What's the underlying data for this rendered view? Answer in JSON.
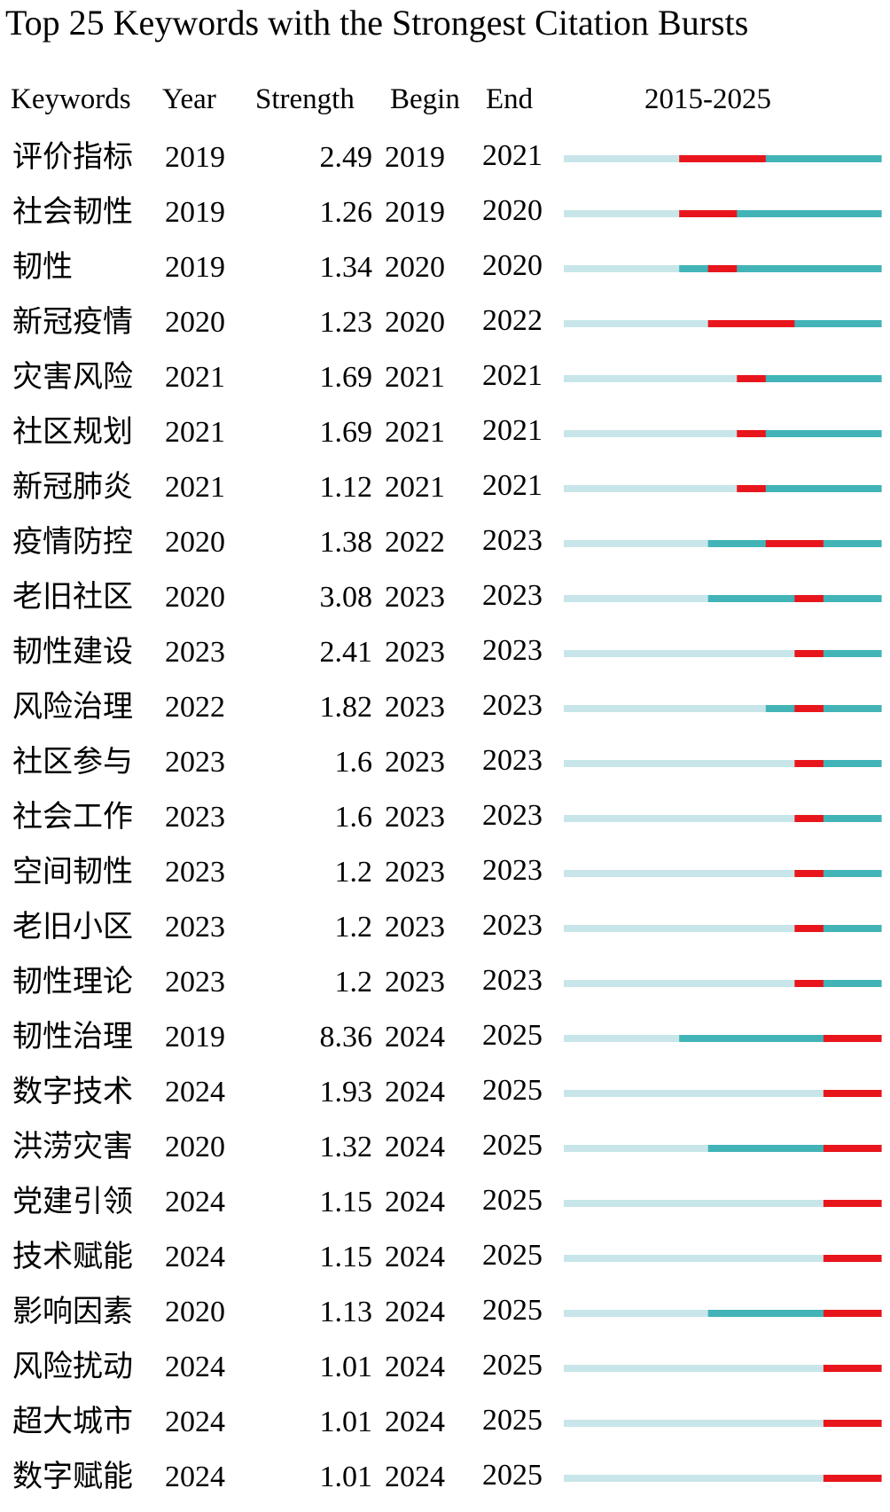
{
  "title": "Top 25 Keywords with the Strongest Citation Bursts",
  "headers": {
    "keywords": "Keywords",
    "year": "Year",
    "strength": "Strength",
    "begin": "Begin",
    "end": "End",
    "range": "2015-2025"
  },
  "colors": {
    "before": "#c8e6e9",
    "active": "#42b4b8",
    "burst": "#e8161c"
  },
  "chart_data": {
    "type": "table",
    "title": "Top 25 Keywords with the Strongest Citation Bursts",
    "range": [
      2015,
      2025
    ],
    "rows": [
      {
        "keyword": "评价指标",
        "year": "2019",
        "strength": "2.49",
        "begin": "2019",
        "end": "2021"
      },
      {
        "keyword": "社会韧性",
        "year": "2019",
        "strength": "1.26",
        "begin": "2019",
        "end": "2020"
      },
      {
        "keyword": "韧性",
        "year": "2019",
        "strength": "1.34",
        "begin": "2020",
        "end": "2020"
      },
      {
        "keyword": "新冠疫情",
        "year": "2020",
        "strength": "1.23",
        "begin": "2020",
        "end": "2022"
      },
      {
        "keyword": "灾害风险",
        "year": "2021",
        "strength": "1.69",
        "begin": "2021",
        "end": "2021"
      },
      {
        "keyword": "社区规划",
        "year": "2021",
        "strength": "1.69",
        "begin": "2021",
        "end": "2021"
      },
      {
        "keyword": "新冠肺炎",
        "year": "2021",
        "strength": "1.12",
        "begin": "2021",
        "end": "2021"
      },
      {
        "keyword": "疫情防控",
        "year": "2020",
        "strength": "1.38",
        "begin": "2022",
        "end": "2023"
      },
      {
        "keyword": "老旧社区",
        "year": "2020",
        "strength": "3.08",
        "begin": "2023",
        "end": "2023"
      },
      {
        "keyword": "韧性建设",
        "year": "2023",
        "strength": "2.41",
        "begin": "2023",
        "end": "2023"
      },
      {
        "keyword": "风险治理",
        "year": "2022",
        "strength": "1.82",
        "begin": "2023",
        "end": "2023"
      },
      {
        "keyword": "社区参与",
        "year": "2023",
        "strength": "1.6",
        "begin": "2023",
        "end": "2023"
      },
      {
        "keyword": "社会工作",
        "year": "2023",
        "strength": "1.6",
        "begin": "2023",
        "end": "2023"
      },
      {
        "keyword": "空间韧性",
        "year": "2023",
        "strength": "1.2",
        "begin": "2023",
        "end": "2023"
      },
      {
        "keyword": "老旧小区",
        "year": "2023",
        "strength": "1.2",
        "begin": "2023",
        "end": "2023"
      },
      {
        "keyword": "韧性理论",
        "year": "2023",
        "strength": "1.2",
        "begin": "2023",
        "end": "2023"
      },
      {
        "keyword": "韧性治理",
        "year": "2019",
        "strength": "8.36",
        "begin": "2024",
        "end": "2025"
      },
      {
        "keyword": "数字技术",
        "year": "2024",
        "strength": "1.93",
        "begin": "2024",
        "end": "2025"
      },
      {
        "keyword": "洪涝灾害",
        "year": "2020",
        "strength": "1.32",
        "begin": "2024",
        "end": "2025"
      },
      {
        "keyword": "党建引领",
        "year": "2024",
        "strength": "1.15",
        "begin": "2024",
        "end": "2025"
      },
      {
        "keyword": "技术赋能",
        "year": "2024",
        "strength": "1.15",
        "begin": "2024",
        "end": "2025"
      },
      {
        "keyword": "影响因素",
        "year": "2020",
        "strength": "1.13",
        "begin": "2024",
        "end": "2025"
      },
      {
        "keyword": "风险扰动",
        "year": "2024",
        "strength": "1.01",
        "begin": "2024",
        "end": "2025"
      },
      {
        "keyword": "超大城市",
        "year": "2024",
        "strength": "1.01",
        "begin": "2024",
        "end": "2025"
      },
      {
        "keyword": "数字赋能",
        "year": "2024",
        "strength": "1.01",
        "begin": "2024",
        "end": "2025"
      }
    ]
  }
}
